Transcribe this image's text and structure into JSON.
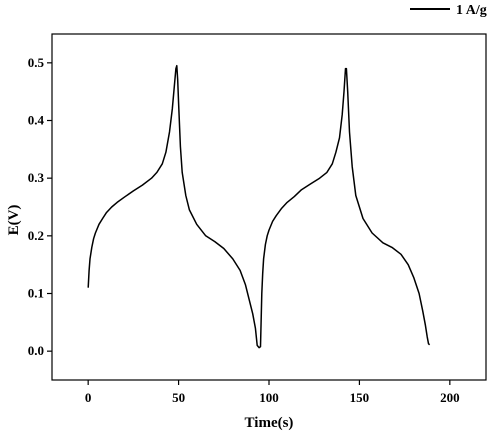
{
  "chart_data": {
    "type": "line",
    "title": "",
    "xlabel": "Time(s)",
    "ylabel": "E(V)",
    "xlim": [
      -20,
      220
    ],
    "ylim": [
      -0.05,
      0.55
    ],
    "xticks": [
      0,
      50,
      100,
      150,
      200
    ],
    "yticks": [
      0.0,
      0.1,
      0.2,
      0.3,
      0.4,
      0.5
    ],
    "xtick_labels": [
      "0",
      "50",
      "100",
      "150",
      "200"
    ],
    "ytick_labels": [
      "0.0",
      "0.1",
      "0.2",
      "0.3",
      "0.4",
      "0.5"
    ],
    "grid": false,
    "legend_position": "top-right",
    "series": [
      {
        "name": "1 A/g",
        "color": "#000000",
        "x": [
          0,
          0.5,
          1,
          2,
          3,
          4,
          6,
          8,
          10,
          13,
          16,
          20,
          25,
          30,
          35,
          38,
          41,
          43,
          45,
          46.5,
          47.5,
          48.5,
          49,
          49.5,
          50,
          51,
          52,
          54,
          56,
          60,
          65,
          70,
          75,
          80,
          84,
          87,
          89,
          91,
          92.5,
          93.5,
          94.5,
          95.3,
          96,
          96.5,
          97,
          98,
          99,
          100,
          102,
          104,
          107,
          110,
          114,
          118,
          123,
          128,
          132,
          135,
          137,
          139,
          140.5,
          141.5,
          142.3,
          142.8,
          143.5,
          144.5,
          146,
          148,
          152,
          157,
          163,
          168,
          173,
          177,
          180,
          183,
          185,
          186.5,
          187.5,
          188.2,
          188.8
        ],
        "y": [
          0.11,
          0.14,
          0.16,
          0.18,
          0.195,
          0.205,
          0.22,
          0.23,
          0.24,
          0.25,
          0.258,
          0.267,
          0.278,
          0.288,
          0.3,
          0.31,
          0.325,
          0.345,
          0.38,
          0.42,
          0.455,
          0.49,
          0.495,
          0.47,
          0.43,
          0.355,
          0.31,
          0.27,
          0.245,
          0.22,
          0.2,
          0.19,
          0.178,
          0.16,
          0.14,
          0.115,
          0.09,
          0.065,
          0.04,
          0.01,
          0.006,
          0.008,
          0.1,
          0.135,
          0.16,
          0.185,
          0.2,
          0.21,
          0.225,
          0.235,
          0.248,
          0.258,
          0.268,
          0.28,
          0.29,
          0.3,
          0.31,
          0.325,
          0.345,
          0.37,
          0.41,
          0.45,
          0.49,
          0.49,
          0.45,
          0.38,
          0.32,
          0.27,
          0.23,
          0.205,
          0.188,
          0.18,
          0.168,
          0.15,
          0.128,
          0.1,
          0.07,
          0.045,
          0.025,
          0.013,
          0.011
        ]
      }
    ]
  }
}
